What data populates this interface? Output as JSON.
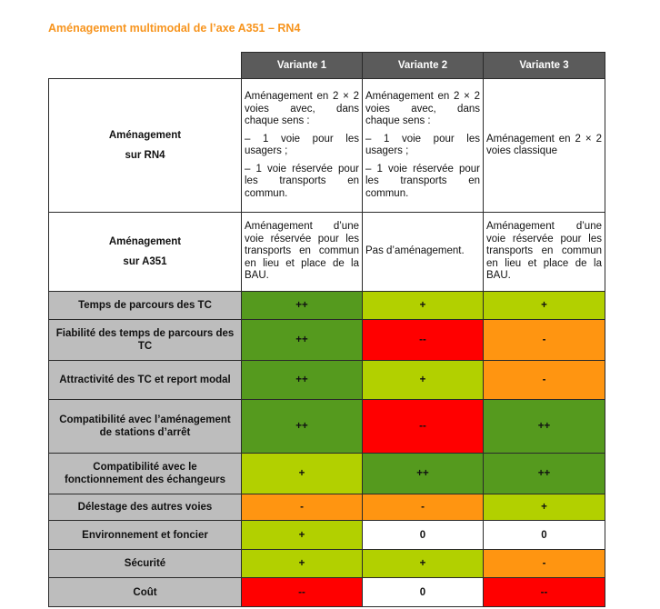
{
  "title": "Aménagement multimodal de l’axe A351 – RN4",
  "colors": {
    "dark_green": "#559a1e",
    "light_green": "#b2d000",
    "red": "#ff0000",
    "orange": "#ff9511",
    "white": "#ffffff",
    "header": "#5b5b5b",
    "label": "#bdbdbd",
    "title": "#f7941d"
  },
  "variants": [
    "Variante 1",
    "Variante 2",
    "Variante 3"
  ],
  "rn4": {
    "label_line1": "Aménagement",
    "label_line2": "sur RN4",
    "v1": [
      "Aménagement en 2 × 2 voies avec, dans chaque sens :",
      "– 1 voie pour les usagers ;",
      "– 1 voie réservée pour les transports en commun."
    ],
    "v2": [
      "Aménagement en 2 × 2 voies avec, dans chaque sens :",
      "– 1 voie pour les usagers ;",
      "– 1 voie réservée pour les transports en commun."
    ],
    "v3": [
      "Aménagement en 2 × 2 voies classique"
    ]
  },
  "a351": {
    "label_line1": "Aménagement",
    "label_line2": "sur A351",
    "v1": "Aménagement d’une voie réservée pour les transports en commun en lieu et place de la BAU.",
    "v2": "Pas d’aménagement.",
    "v3": "Aménagement d’une voie réservée pour les transports en commun en lieu et place de la BAU."
  },
  "criteria": [
    {
      "label": "Temps de parcours des TC",
      "scores": [
        "++",
        "+",
        "+"
      ],
      "colors": [
        "dg",
        "lg",
        "lg"
      ]
    },
    {
      "label": "Fiabilité des temps de parcours des TC",
      "scores": [
        "++",
        "--",
        "-"
      ],
      "colors": [
        "dg",
        "r",
        "o"
      ]
    },
    {
      "label": "Attractivité des TC et report modal",
      "scores": [
        "++",
        "+",
        "-"
      ],
      "colors": [
        "dg",
        "lg",
        "o"
      ]
    },
    {
      "label": "Compatibilité avec l’aménagement de stations d’arrêt",
      "scores": [
        "++",
        "--",
        "++"
      ],
      "colors": [
        "dg",
        "r",
        "dg"
      ]
    },
    {
      "label": "Compatibilité avec le fonctionnement des échangeurs",
      "scores": [
        "+",
        "++",
        "++"
      ],
      "colors": [
        "lg",
        "dg",
        "dg"
      ]
    },
    {
      "label": "Délestage des autres voies",
      "scores": [
        "-",
        "-",
        "+"
      ],
      "colors": [
        "o",
        "o",
        "lg"
      ]
    },
    {
      "label": "Environnement et foncier",
      "scores": [
        "+",
        "0",
        "0"
      ],
      "colors": [
        "lg",
        "w",
        "w"
      ]
    },
    {
      "label": "Sécurité",
      "scores": [
        "+",
        "+",
        "-"
      ],
      "colors": [
        "lg",
        "lg",
        "o"
      ]
    },
    {
      "label": "Coût",
      "scores": [
        "--",
        "0",
        "--"
      ],
      "colors": [
        "r",
        "w",
        "r"
      ]
    }
  ]
}
